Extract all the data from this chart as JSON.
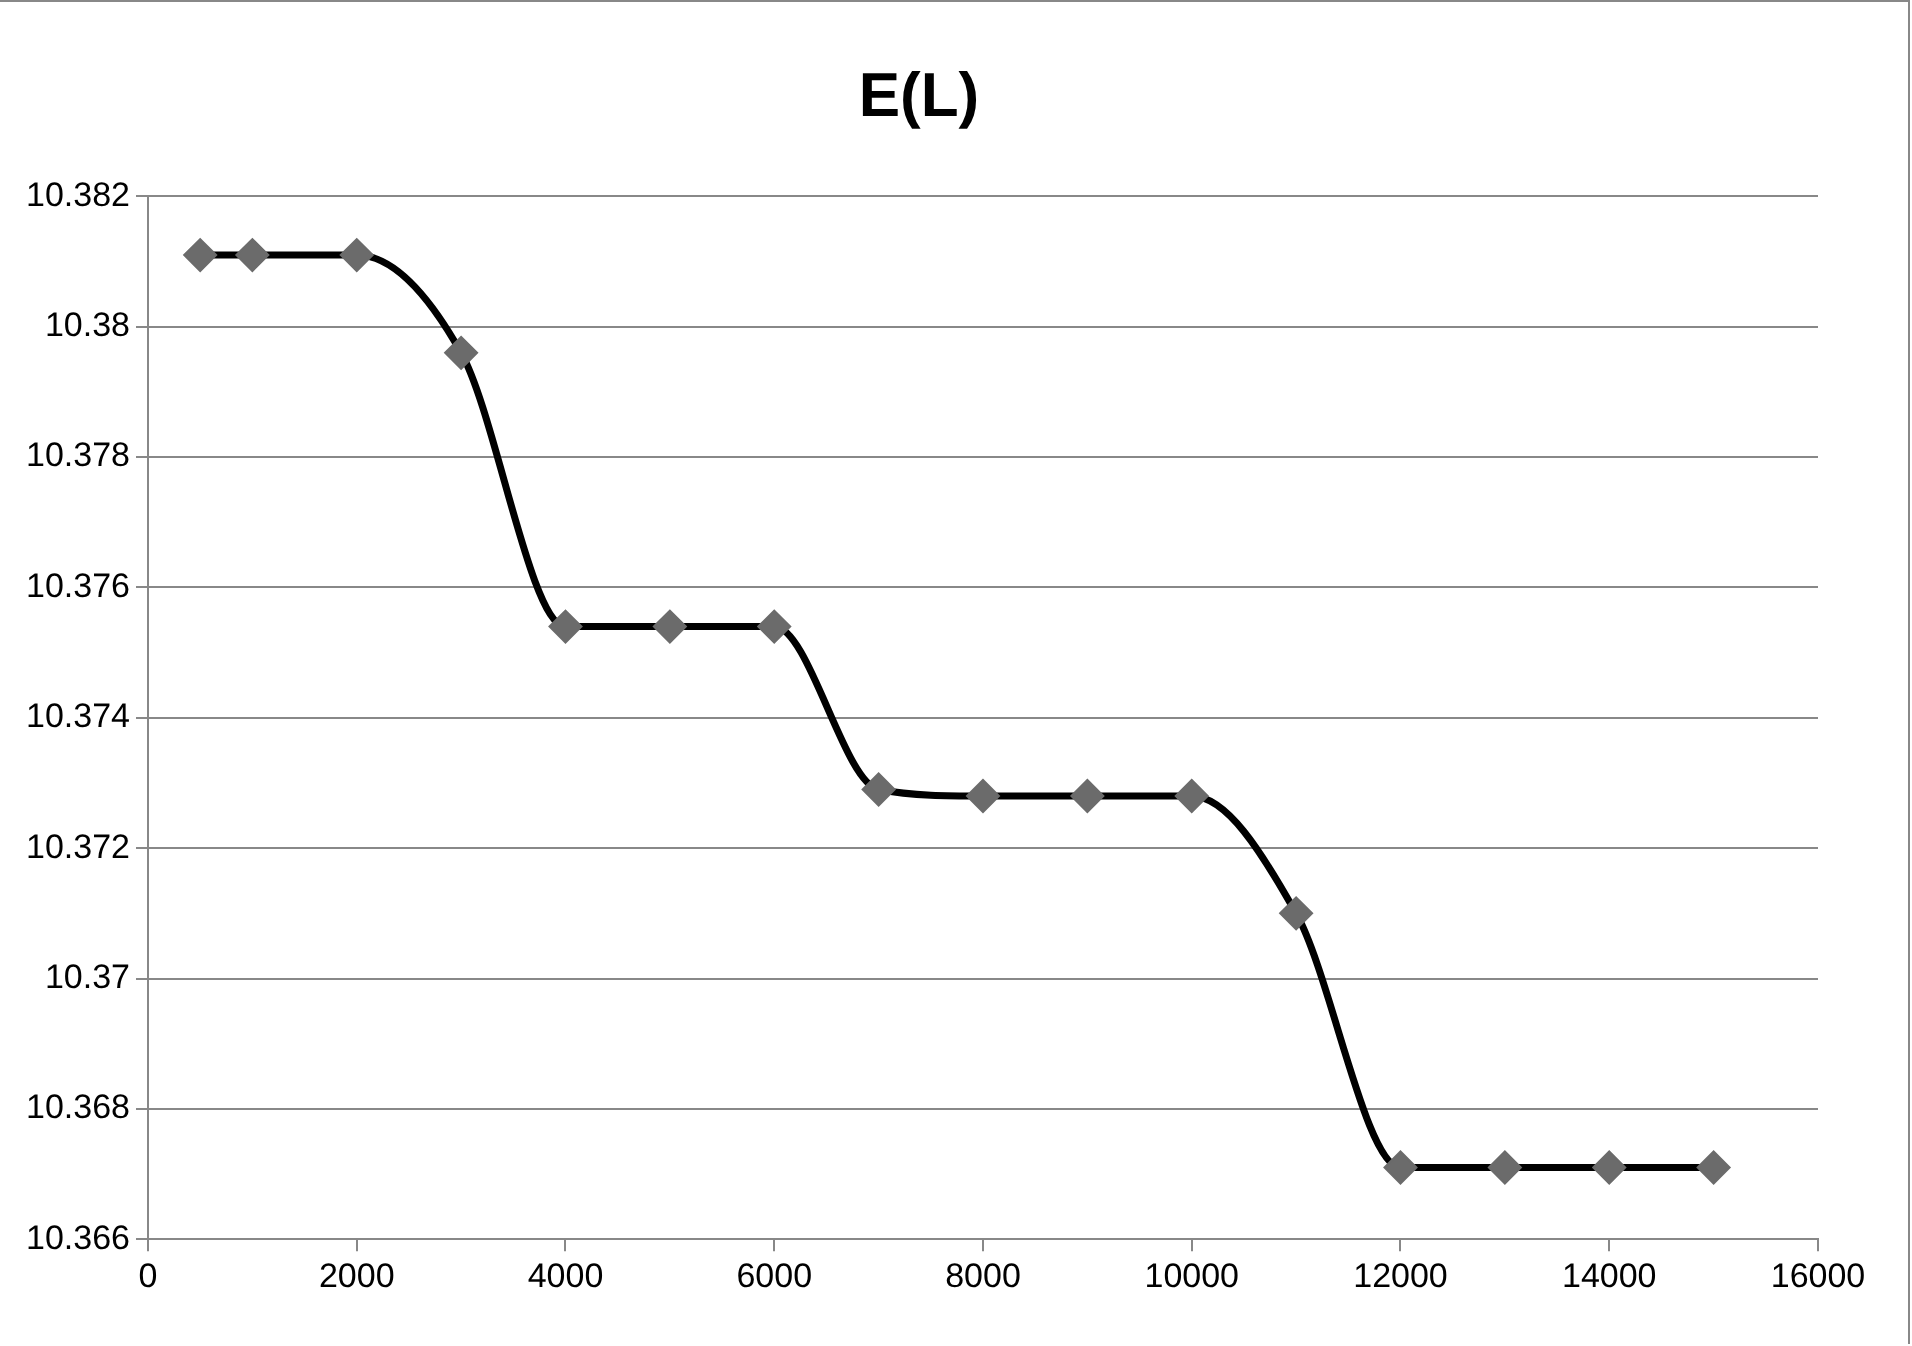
{
  "chart_data": {
    "type": "line",
    "title": "E(L)",
    "x": [
      500,
      1000,
      2000,
      3000,
      4000,
      5000,
      6000,
      7000,
      8000,
      9000,
      10000,
      11000,
      12000,
      13000,
      14000,
      15000
    ],
    "series": [
      {
        "color": "#000000",
        "values": [
          10.3811,
          10.3811,
          10.3811,
          10.3796,
          10.3754,
          10.3754,
          10.3754,
          10.3729,
          10.3728,
          10.3728,
          10.3728,
          10.371,
          10.3671,
          10.3671,
          10.3671,
          10.3671
        ]
      }
    ],
    "xlim": [
      0,
      16000
    ],
    "xticks": [
      0,
      2000,
      4000,
      6000,
      8000,
      10000,
      12000,
      14000,
      16000
    ],
    "ylim": [
      10.366,
      10.382
    ],
    "yticks": [
      10.366,
      10.368,
      10.37,
      10.372,
      10.374,
      10.376,
      10.378,
      10.38,
      10.382
    ],
    "grid": "y",
    "marker": "diamond",
    "line_style": "solid"
  }
}
